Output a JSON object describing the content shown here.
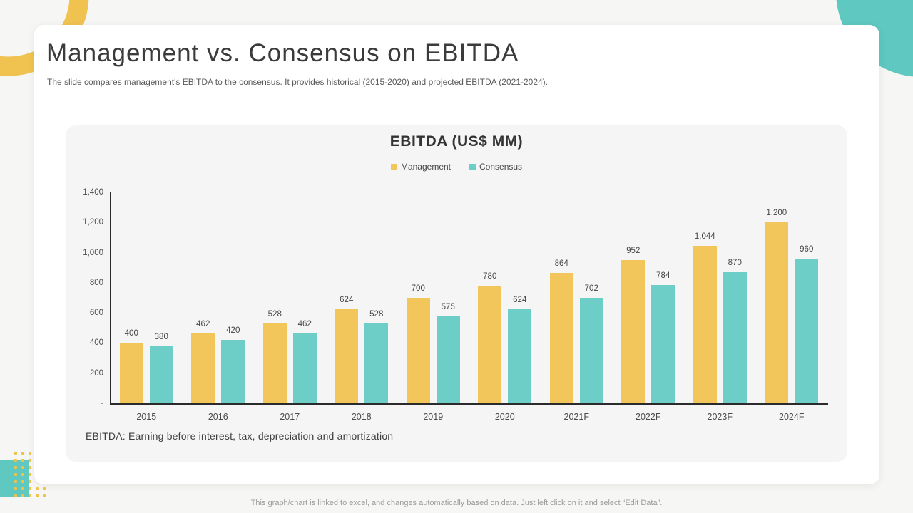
{
  "slide": {
    "title": "Management vs. Consensus on EBITDA",
    "subtitle": "The slide compares management's EBITDA to the consensus. It provides historical (2015-2020) and projected EBITDA (2021-2024).",
    "footnote": "EBITDA: Earning before interest, tax, depreciation and amortization"
  },
  "footer": {
    "note": "This graph/chart is linked to excel,  and changes automatically based on data. Just left click on it and select “Edit Data”."
  },
  "chart_data": {
    "type": "bar",
    "title": "EBITDA (US$ MM)",
    "categories": [
      "2015",
      "2016",
      "2017",
      "2018",
      "2019",
      "2020",
      "2021F",
      "2022F",
      "2023F",
      "2024F"
    ],
    "series": [
      {
        "name": "Management",
        "color": "#F2C65A",
        "values": [
          400,
          462,
          528,
          624,
          700,
          780,
          864,
          952,
          1044,
          1200
        ]
      },
      {
        "name": "Consensus",
        "color": "#6DCEC8",
        "values": [
          380,
          420,
          462,
          528,
          575,
          624,
          702,
          784,
          870,
          960
        ]
      }
    ],
    "xlabel": "",
    "ylabel": "",
    "ylim": [
      0,
      1400
    ],
    "ytick_step": 200,
    "ytick_labels": [
      "-",
      "200",
      "400",
      "600",
      "800",
      "1,000",
      "1,200",
      "1,400"
    ],
    "legend_position": "top-center",
    "grid": false,
    "data_labels": true
  },
  "decor": {
    "ring_yellow": "#F0C351",
    "circle_teal": "#5EC8C1",
    "rect_teal": "#5EC8C1",
    "dot_yellow": "#EFC24A"
  }
}
